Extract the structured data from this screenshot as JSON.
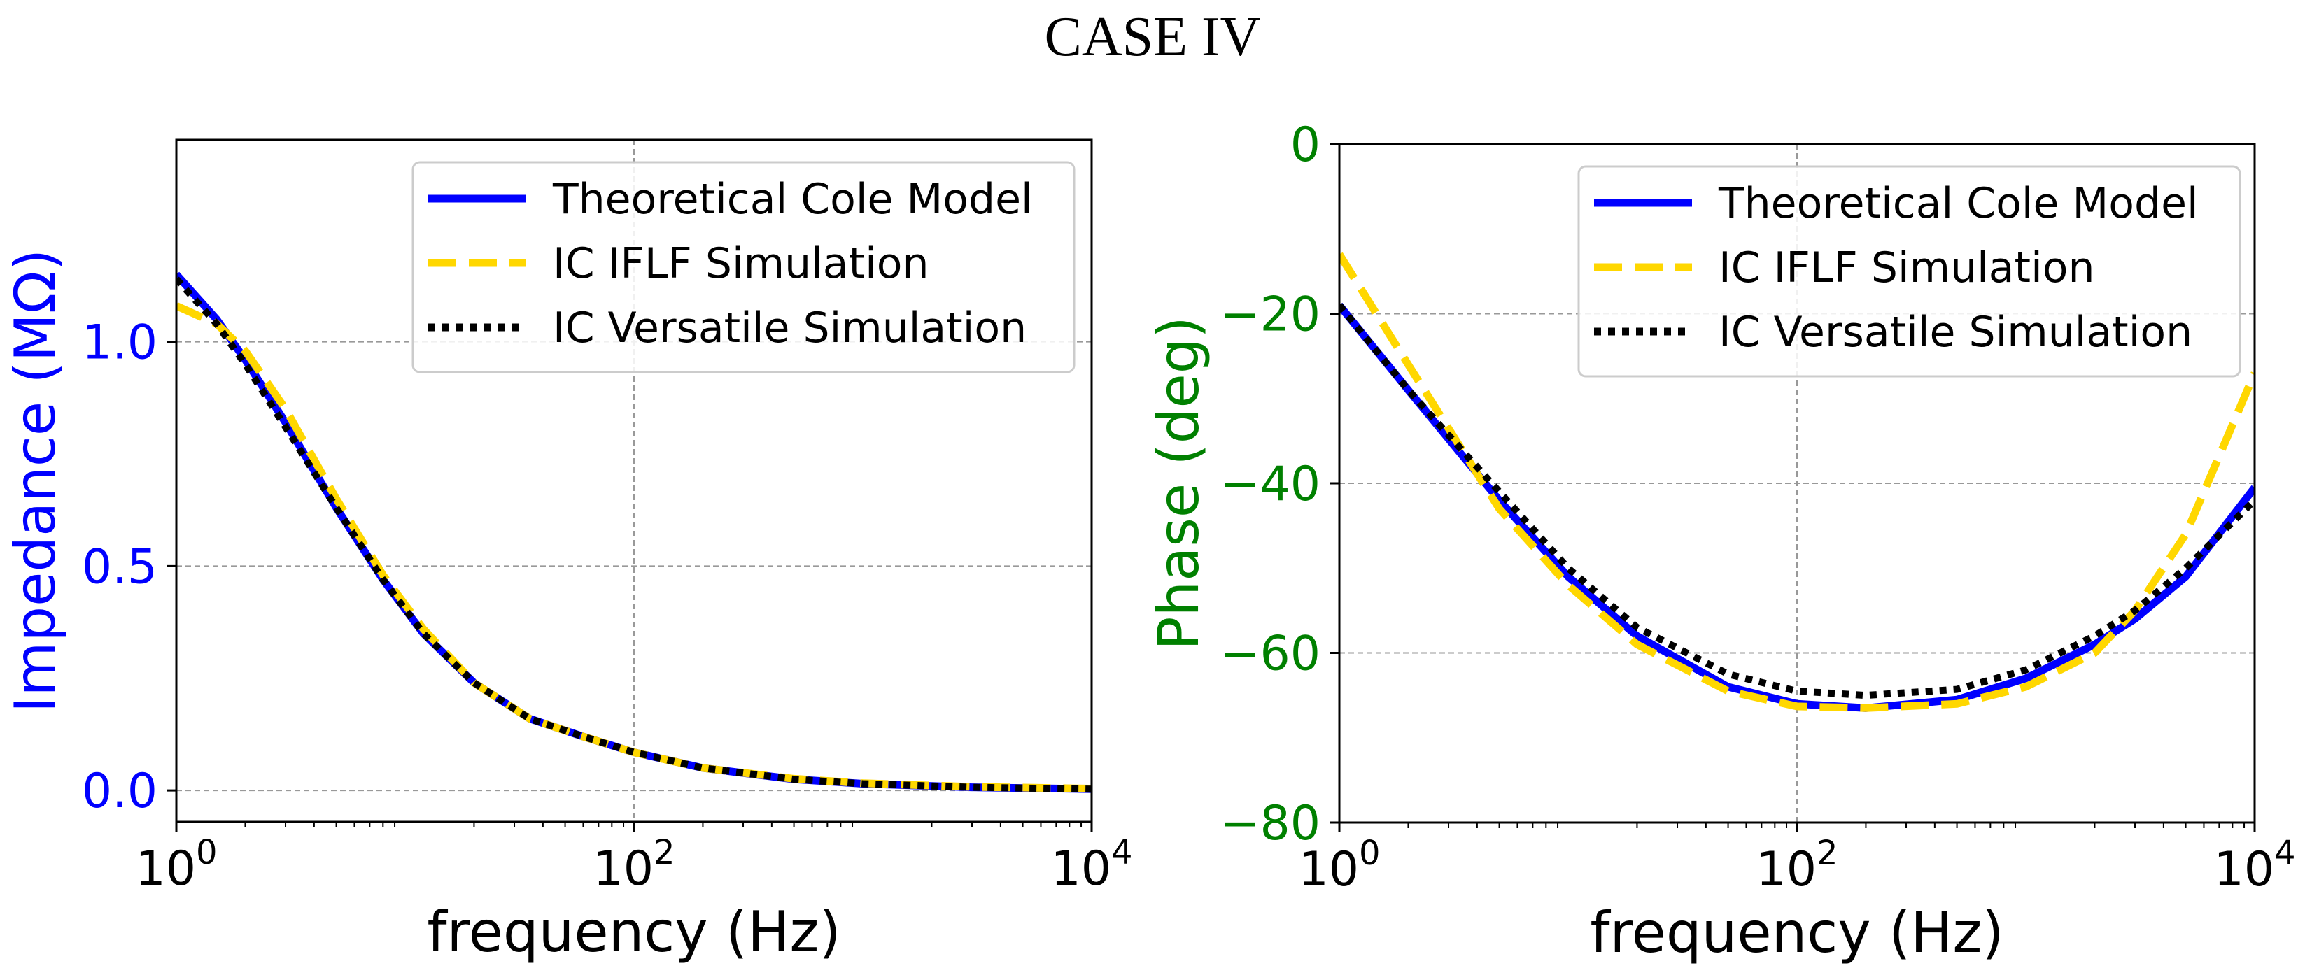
{
  "page_title": "CASE IV",
  "colors": {
    "theory": "#0000ff",
    "iflf": "#ffd700",
    "versatile": "#000000",
    "left_axis": "#0000ff",
    "right_axis": "#008000",
    "grid": "#999999"
  },
  "chart_data": [
    {
      "type": "line",
      "title": "",
      "xlabel": "frequency (Hz)",
      "ylabel": "Impedance (MΩ)",
      "xscale": "log",
      "xlim": [
        1,
        10000
      ],
      "ylim": [
        -0.07,
        1.45
      ],
      "x_ticks": [
        1,
        100,
        10000
      ],
      "x_tick_labels": [
        {
          "base": "10",
          "exp": "0"
        },
        {
          "base": "10",
          "exp": "2"
        },
        {
          "base": "10",
          "exp": "4"
        }
      ],
      "y_ticks": [
        0.0,
        0.5,
        1.0
      ],
      "y_tick_labels": [
        "0.0",
        "0.5",
        "1.0"
      ],
      "grid": true,
      "legend_position": "top-right",
      "x": [
        1,
        1.5,
        2,
        3,
        5,
        8,
        12,
        20,
        35,
        60,
        100,
        200,
        500,
        1000,
        3000,
        10000
      ],
      "series": [
        {
          "name": "Theoretical Cole Model",
          "style": "solid",
          "values": [
            1.15,
            1.05,
            0.96,
            0.82,
            0.63,
            0.47,
            0.35,
            0.24,
            0.16,
            0.12,
            0.085,
            0.05,
            0.025,
            0.015,
            0.007,
            0.003
          ]
        },
        {
          "name": "IC IFLF Simulation",
          "style": "dashed",
          "values": [
            1.08,
            1.04,
            0.98,
            0.85,
            0.65,
            0.48,
            0.36,
            0.24,
            0.16,
            0.12,
            0.085,
            0.05,
            0.026,
            0.016,
            0.008,
            0.004
          ]
        },
        {
          "name": "IC Versatile Simulation",
          "style": "dotted",
          "values": [
            1.14,
            1.04,
            0.95,
            0.81,
            0.63,
            0.47,
            0.35,
            0.24,
            0.16,
            0.12,
            0.085,
            0.05,
            0.025,
            0.015,
            0.007,
            0.003
          ]
        }
      ]
    },
    {
      "type": "line",
      "title": "",
      "xlabel": "frequency (Hz)",
      "ylabel": "Phase (deg)",
      "xscale": "log",
      "xlim": [
        1,
        10000
      ],
      "ylim": [
        -80,
        0
      ],
      "x_ticks": [
        1,
        100,
        10000
      ],
      "x_tick_labels": [
        {
          "base": "10",
          "exp": "0"
        },
        {
          "base": "10",
          "exp": "2"
        },
        {
          "base": "10",
          "exp": "4"
        }
      ],
      "y_ticks": [
        -80,
        -60,
        -40,
        -20,
        0
      ],
      "y_tick_labels": [
        "−80",
        "−60",
        "−40",
        "−20",
        "0"
      ],
      "grid": true,
      "legend_position": "top-right",
      "x": [
        1,
        2,
        5,
        10,
        20,
        50,
        100,
        200,
        500,
        1000,
        2000,
        3000,
        5000,
        10000
      ],
      "series": [
        {
          "name": "Theoretical Cole Model",
          "style": "solid",
          "values": [
            -19,
            -29,
            -42,
            -51,
            -58,
            -64,
            -66,
            -66.5,
            -65.5,
            -63,
            -59,
            -56,
            -51,
            -40.5
          ]
        },
        {
          "name": "IC IFLF Simulation",
          "style": "dashed",
          "values": [
            -13,
            -26,
            -43,
            -52,
            -59,
            -64.5,
            -66.3,
            -66.5,
            -66,
            -64,
            -60,
            -55,
            -46,
            -27
          ]
        },
        {
          "name": "IC Versatile Simulation",
          "style": "dotted",
          "values": [
            -19,
            -29,
            -41,
            -50,
            -57,
            -62.5,
            -64.5,
            -65,
            -64.3,
            -62,
            -58,
            -55,
            -50,
            -42
          ]
        }
      ]
    }
  ]
}
